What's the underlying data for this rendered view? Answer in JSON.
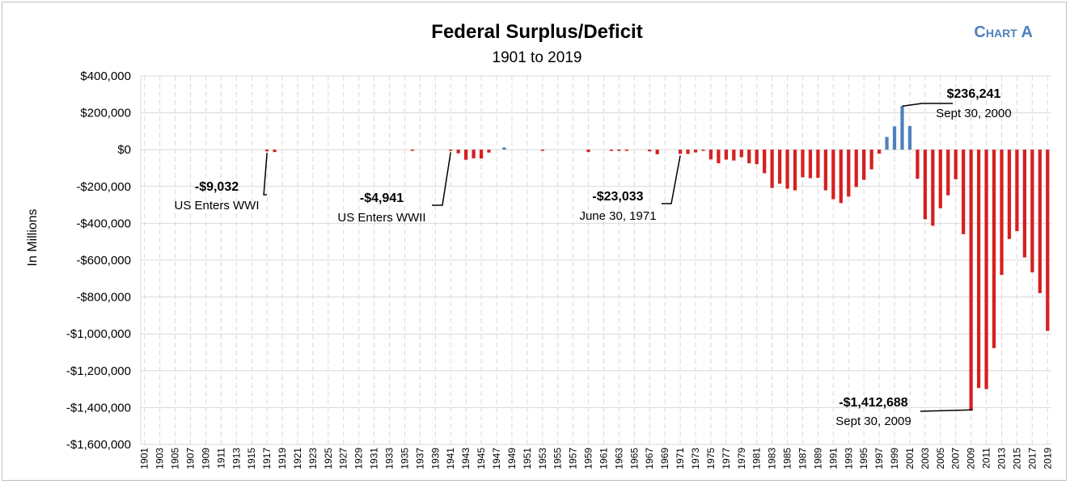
{
  "chart_data": {
    "type": "bar",
    "title": "Federal Surplus/Deficit",
    "subtitle": "1901 to 2019",
    "tag": "Chart A",
    "ylabel": "In Millions",
    "xlabel": "",
    "ylim": [
      -1600000,
      400000
    ],
    "yticks": [
      400000,
      200000,
      0,
      -200000,
      -400000,
      -600000,
      -800000,
      -1000000,
      -1200000,
      -1400000,
      -1600000
    ],
    "ytick_labels": [
      "$400,000",
      "$200,000",
      "$0",
      "-$200,000",
      "-$400,000",
      "-$600,000",
      "-$800,000",
      "-$1,000,000",
      "-$1,200,000",
      "-$1,400,000",
      "-$1,600,000"
    ],
    "x_start": 1901,
    "x_end": 2019,
    "xtick_labels": [
      "1901",
      "1903",
      "1905",
      "1907",
      "1909",
      "1911",
      "1913",
      "1915",
      "1917",
      "1919",
      "1921",
      "1923",
      "1925",
      "1927",
      "1929",
      "1931",
      "1933",
      "1935",
      "1937",
      "1939",
      "1941",
      "1943",
      "1945",
      "1947",
      "1949",
      "1951",
      "1953",
      "1955",
      "1957",
      "1959",
      "1961",
      "1963",
      "1965",
      "1967",
      "1969",
      "1971",
      "1973",
      "1975",
      "1977",
      "1979",
      "1981",
      "1983",
      "1985",
      "1987",
      "1989",
      "1991",
      "1993",
      "1995",
      "1997",
      "1999",
      "2001",
      "2003",
      "2005",
      "2007",
      "2009",
      "2011",
      "2013",
      "2015",
      "2017",
      "2019"
    ],
    "grid": true,
    "colors": {
      "surplus": "#4f81bd",
      "deficit": "#d62020"
    },
    "values": {
      "1917": -9032,
      "1918": -13000,
      "1936": -4000,
      "1941": -4941,
      "1942": -20000,
      "1943": -55000,
      "1944": -47000,
      "1945": -48000,
      "1946": -16000,
      "1948": 12000,
      "1953": -6000,
      "1959": -13000,
      "1962": -7000,
      "1963": -5000,
      "1964": -6000,
      "1967": -9000,
      "1968": -25000,
      "1971": -23033,
      "1972": -23000,
      "1973": -15000,
      "1974": -6000,
      "1975": -53000,
      "1976": -74000,
      "1977": -54000,
      "1978": -59000,
      "1979": -41000,
      "1980": -74000,
      "1981": -79000,
      "1982": -128000,
      "1983": -208000,
      "1984": -185000,
      "1985": -212000,
      "1986": -221000,
      "1987": -150000,
      "1988": -155000,
      "1989": -153000,
      "1990": -221000,
      "1991": -269000,
      "1992": -290000,
      "1993": -255000,
      "1994": -203000,
      "1995": -164000,
      "1996": -107000,
      "1997": -22000,
      "1998": 69000,
      "1999": 126000,
      "2000": 236241,
      "2001": 128000,
      "2002": -158000,
      "2003": -378000,
      "2004": -413000,
      "2005": -318000,
      "2006": -248000,
      "2007": -161000,
      "2008": -459000,
      "2009": -1412688,
      "2010": -1294000,
      "2011": -1300000,
      "2012": -1077000,
      "2013": -680000,
      "2014": -485000,
      "2015": -442000,
      "2016": -585000,
      "2017": -666000,
      "2018": -779000,
      "2019": -984000
    },
    "annotations": [
      {
        "year": 1917,
        "value": "-$9,032",
        "label": "US Enters WWI"
      },
      {
        "year": 1941,
        "value": "-$4,941",
        "label": "US Enters WWII"
      },
      {
        "year": 1971,
        "value": "-$23,033",
        "label": "June 30, 1971"
      },
      {
        "year": 2000,
        "value": "$236,241",
        "label": "Sept 30, 2000"
      },
      {
        "year": 2009,
        "value": "-$1,412,688",
        "label": "Sept 30, 2009"
      }
    ]
  }
}
